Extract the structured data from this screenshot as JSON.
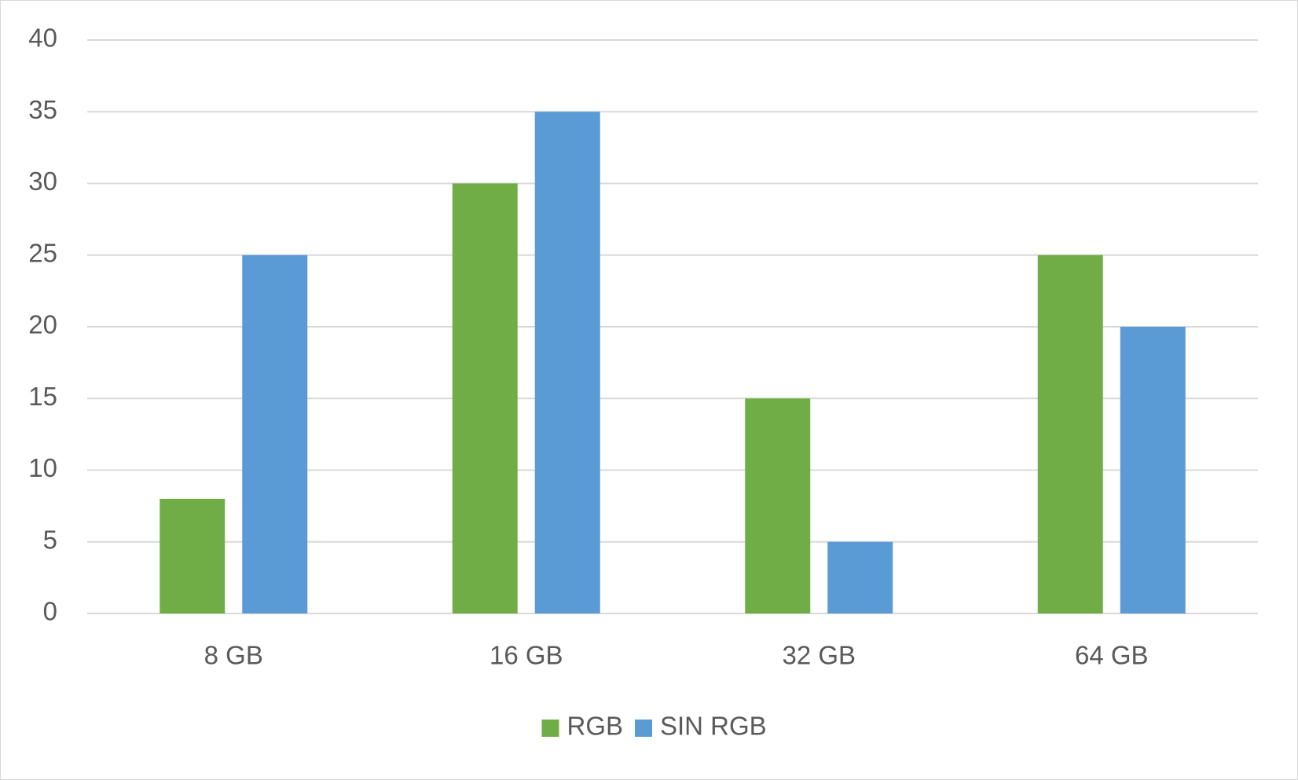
{
  "chart_data": {
    "type": "bar",
    "categories": [
      "8 GB",
      "16 GB",
      "32 GB",
      "64 GB"
    ],
    "series": [
      {
        "name": "RGB",
        "values": [
          8,
          30,
          15,
          25
        ],
        "color": "#70ad47"
      },
      {
        "name": "SIN RGB",
        "values": [
          25,
          35,
          5,
          20
        ],
        "color": "#5b9bd5"
      }
    ],
    "y_ticks": [
      "0",
      "5",
      "10",
      "15",
      "20",
      "25",
      "30",
      "35",
      "40"
    ],
    "ylim": [
      0,
      40
    ],
    "grid": true,
    "legend_position": "bottom",
    "colors": {
      "gridline": "#d9d9d9",
      "text": "#595959",
      "border": "#d9d9d9"
    }
  }
}
